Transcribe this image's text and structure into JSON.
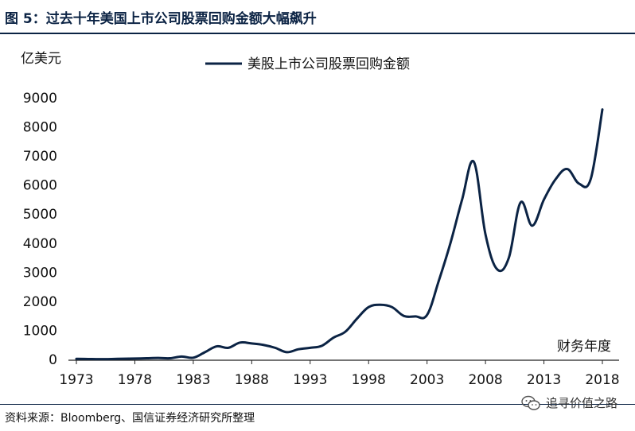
{
  "header": {
    "figure_title": "图 5：过去十年美国上市公司股票回购金额大幅飙升"
  },
  "footer": {
    "source": "资料来源：Bloomberg、国信证券经济研究所整理",
    "watermark_text": "追寻价值之路",
    "watermark_icon": "wechat-icon"
  },
  "chart_data": {
    "type": "line",
    "title": "",
    "xlabel": "财务年度",
    "ylabel": "亿美元",
    "xlim": [
      1973,
      2018
    ],
    "ylim": [
      0,
      9000
    ],
    "x_ticks": [
      1973,
      1978,
      1983,
      1988,
      1993,
      1998,
      2003,
      2008,
      2013,
      2018
    ],
    "y_ticks": [
      0,
      1000,
      2000,
      3000,
      4000,
      5000,
      6000,
      7000,
      8000,
      9000
    ],
    "grid": false,
    "legend_position": "top-center",
    "series": [
      {
        "name": "美股上市公司股票回购金额",
        "color": "#0b2344",
        "x": [
          1973,
          1974,
          1975,
          1976,
          1977,
          1978,
          1979,
          1980,
          1981,
          1982,
          1983,
          1984,
          1985,
          1986,
          1987,
          1988,
          1989,
          1990,
          1991,
          1992,
          1993,
          1994,
          1995,
          1996,
          1997,
          1998,
          1999,
          2000,
          2001,
          2002,
          2003,
          2004,
          2005,
          2006,
          2007,
          2008,
          2009,
          2010,
          2011,
          2012,
          2013,
          2014,
          2015,
          2016,
          2017,
          2018
        ],
        "values": [
          20,
          15,
          10,
          15,
          25,
          30,
          40,
          50,
          40,
          100,
          60,
          250,
          450,
          400,
          580,
          550,
          500,
          400,
          250,
          350,
          400,
          470,
          750,
          950,
          1400,
          1800,
          1880,
          1800,
          1500,
          1480,
          1530,
          2700,
          4000,
          5500,
          6800,
          4300,
          3100,
          3500,
          5400,
          4600,
          5500,
          6200,
          6550,
          6050,
          6200,
          8600
        ]
      }
    ]
  }
}
